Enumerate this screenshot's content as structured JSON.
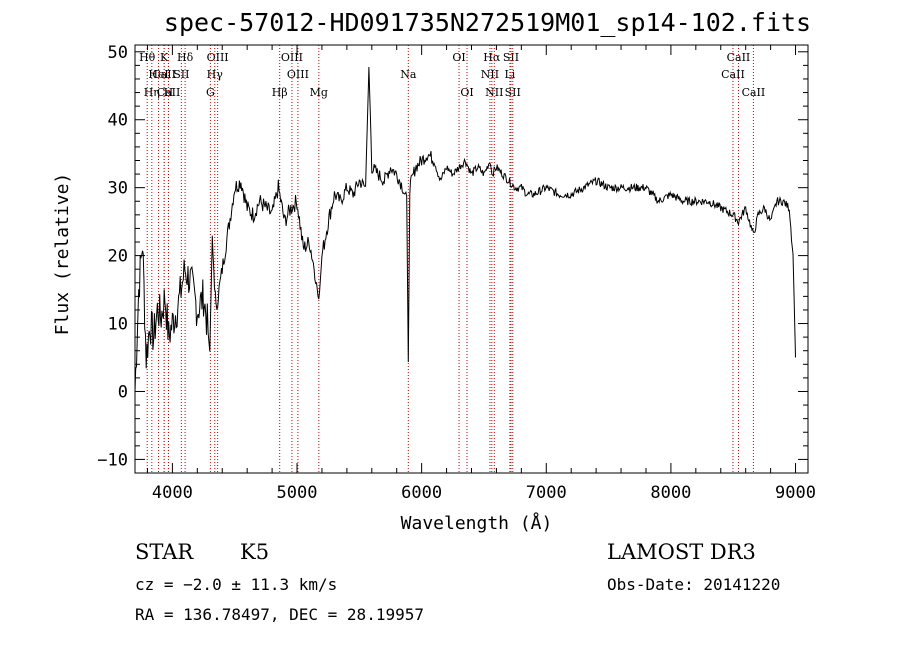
{
  "chart_data": {
    "type": "line",
    "title": "spec-57012-HD091735N272519M01_sp14-102.fits",
    "xlabel": "Wavelength (Å)",
    "ylabel": "Flux (relative)",
    "xlim": [
      3700,
      9100
    ],
    "ylim": [
      -12,
      51
    ],
    "x_ticks": [
      4000,
      5000,
      6000,
      7000,
      8000,
      9000
    ],
    "y_ticks": [
      -10,
      0,
      10,
      20,
      30,
      40,
      50
    ],
    "series": [
      {
        "name": "spectrum",
        "x": [
          3700,
          3730,
          3760,
          3790,
          3820,
          3850,
          3880,
          3910,
          3940,
          3970,
          4000,
          4050,
          4100,
          4150,
          4200,
          4250,
          4280,
          4300,
          4320,
          4350,
          4400,
          4450,
          4500,
          4550,
          4600,
          4650,
          4700,
          4750,
          4800,
          4850,
          4900,
          4950,
          5000,
          5050,
          5100,
          5150,
          5175,
          5200,
          5250,
          5300,
          5350,
          5400,
          5450,
          5500,
          5550,
          5577,
          5600,
          5650,
          5700,
          5750,
          5800,
          5850,
          5880,
          5893,
          5905,
          5950,
          6000,
          6050,
          6100,
          6150,
          6200,
          6250,
          6300,
          6350,
          6400,
          6450,
          6500,
          6550,
          6563,
          6600,
          6650,
          6700,
          6750,
          6800,
          6850,
          6900,
          7000,
          7100,
          7200,
          7300,
          7400,
          7500,
          7600,
          7700,
          7800,
          7900,
          8000,
          8100,
          8200,
          8300,
          8400,
          8500,
          8542,
          8600,
          8662,
          8700,
          8750,
          8800,
          8850,
          8900,
          8950,
          8980,
          9000
        ],
        "values": [
          0,
          15,
          22,
          5,
          10,
          8,
          12,
          11,
          14,
          8,
          10,
          13,
          18,
          16,
          12,
          14,
          10,
          6,
          22,
          12,
          18,
          24,
          30,
          31,
          27,
          26,
          28,
          27,
          26,
          30,
          25,
          27,
          28,
          21,
          22,
          17,
          13,
          20,
          25,
          29,
          28,
          30,
          29,
          31,
          30,
          48,
          33,
          32,
          31,
          33,
          32,
          30,
          28,
          5,
          30,
          33,
          34,
          35,
          34,
          31,
          33,
          32,
          33,
          34,
          32,
          33,
          32,
          34,
          32,
          33,
          32,
          31,
          30,
          30,
          29,
          29,
          30,
          29,
          29,
          30,
          31,
          30,
          30,
          30,
          30,
          28,
          29,
          28,
          28,
          28,
          27,
          26,
          25,
          27,
          23,
          26,
          27,
          25,
          28,
          28,
          27,
          20,
          5
        ],
        "color": "#000000"
      }
    ],
    "line_markers": [
      {
        "label": "Hθ",
        "wavelength": 3798,
        "row": 1
      },
      {
        "label": "CaII",
        "wavelength": 3934,
        "row": 2
      },
      {
        "label": "K",
        "wavelength": 3934,
        "row": 1
      },
      {
        "label": "HeI",
        "wavelength": 3889,
        "row": 2
      },
      {
        "label": "CaII",
        "wavelength": 3969,
        "row": 3
      },
      {
        "label": "Hη",
        "wavelength": 3835,
        "row": 3
      },
      {
        "label": "H",
        "wavelength": 3968,
        "row": 3
      },
      {
        "label": "SII",
        "wavelength": 4072,
        "row": 2
      },
      {
        "label": "Hδ",
        "wavelength": 4102,
        "row": 1
      },
      {
        "label": "OIII",
        "wavelength": 4363,
        "row": 1
      },
      {
        "label": "Hγ",
        "wavelength": 4340,
        "row": 2
      },
      {
        "label": "G",
        "wavelength": 4305,
        "row": 3
      },
      {
        "label": "OIII",
        "wavelength": 4959,
        "row": 1
      },
      {
        "label": "OIII",
        "wavelength": 5007,
        "row": 2
      },
      {
        "label": "Hβ",
        "wavelength": 4861,
        "row": 3
      },
      {
        "label": "Mg",
        "wavelength": 5175,
        "row": 3
      },
      {
        "label": "Na",
        "wavelength": 5893,
        "row": 2
      },
      {
        "label": "OI",
        "wavelength": 6300,
        "row": 1
      },
      {
        "label": "OI",
        "wavelength": 6364,
        "row": 3
      },
      {
        "label": "Hα",
        "wavelength": 6563,
        "row": 1
      },
      {
        "label": "NII",
        "wavelength": 6548,
        "row": 2
      },
      {
        "label": "NII",
        "wavelength": 6583,
        "row": 3
      },
      {
        "label": "SII",
        "wavelength": 6717,
        "row": 1
      },
      {
        "label": "Li",
        "wavelength": 6708,
        "row": 2
      },
      {
        "label": "SII",
        "wavelength": 6731,
        "row": 3
      },
      {
        "label": "CaII",
        "wavelength": 8542,
        "row": 1
      },
      {
        "label": "CaII",
        "wavelength": 8498,
        "row": 2
      },
      {
        "label": "CaII",
        "wavelength": 8662,
        "row": 3
      }
    ],
    "marker_color": "#cc0000"
  },
  "info": {
    "object_type": "STAR",
    "subclass": "K5",
    "survey": "LAMOST DR3",
    "redshift": "cz = −2.0 ± 11.3 km/s",
    "obs_date": "Obs-Date: 20141220",
    "coords": "RA = 136.78497, DEC =  28.19957"
  }
}
